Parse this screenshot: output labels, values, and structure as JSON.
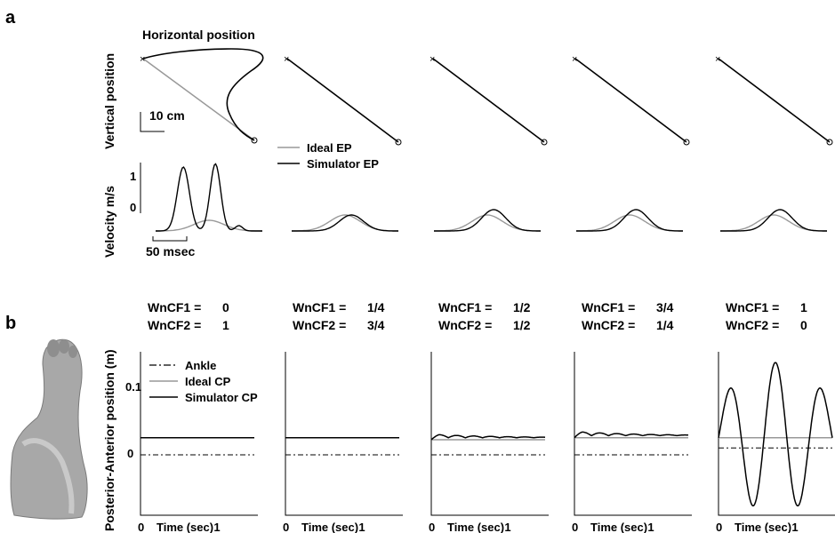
{
  "colors": {
    "ideal": "#999999",
    "simulator": "#000000",
    "ankle": "#000000"
  },
  "chart_data": [
    {
      "panel": "a",
      "type": "line",
      "title": "Horizontal position",
      "ylabel_top": "Vertical position",
      "ylabel_bottom": "Velocity m/s",
      "scale_bar_position": "10 cm",
      "scale_bar_time": "50 msec",
      "velocity_ticks": [
        "1",
        "0"
      ],
      "legend": [
        "Ideal EP",
        "Simulator EP"
      ],
      "velocity_peak": {
        "ideal": [
          0.2,
          0.3,
          0.3,
          0.3,
          0.3
        ],
        "simulator": [
          1.2,
          0.3,
          0.4,
          0.4,
          0.4
        ]
      }
    },
    {
      "panel": "b",
      "type": "line",
      "ylabel": "Posterior-Anterior position (m)",
      "xlabel": "Time (sec)",
      "x_ticks": [
        "0",
        "1"
      ],
      "y_ticks": [
        "0.1",
        "0"
      ],
      "legend": [
        "Ankle",
        "Ideal CP",
        "Simulator CP"
      ],
      "subplots": [
        {
          "l1": "WnCF1 =",
          "v1": "0",
          "l2": "WnCF2 =",
          "v2": "1"
        },
        {
          "l1": "WnCF1 =",
          "v1": "1/4",
          "l2": "WnCF2 =",
          "v2": "3/4"
        },
        {
          "l1": "WnCF1 =",
          "v1": "1/2",
          "l2": "WnCF2 =",
          "v2": "1/2"
        },
        {
          "l1": "WnCF1 =",
          "v1": "3/4",
          "l2": "WnCF2 =",
          "v2": "1/4"
        },
        {
          "l1": "WnCF1 =",
          "v1": "1",
          "l2": "WnCF2 =",
          "v2": "0"
        }
      ],
      "ankle_level": [
        0.0,
        0.0,
        0.0,
        0.0,
        0.01
      ],
      "ideal_level": [
        0.025,
        0.025,
        0.022,
        0.025,
        0.025
      ],
      "simulator_osc_amp": [
        0,
        0,
        0.005,
        0.006,
        0.1
      ]
    }
  ],
  "labels": {
    "panel_a": "a",
    "panel_b": "b"
  }
}
